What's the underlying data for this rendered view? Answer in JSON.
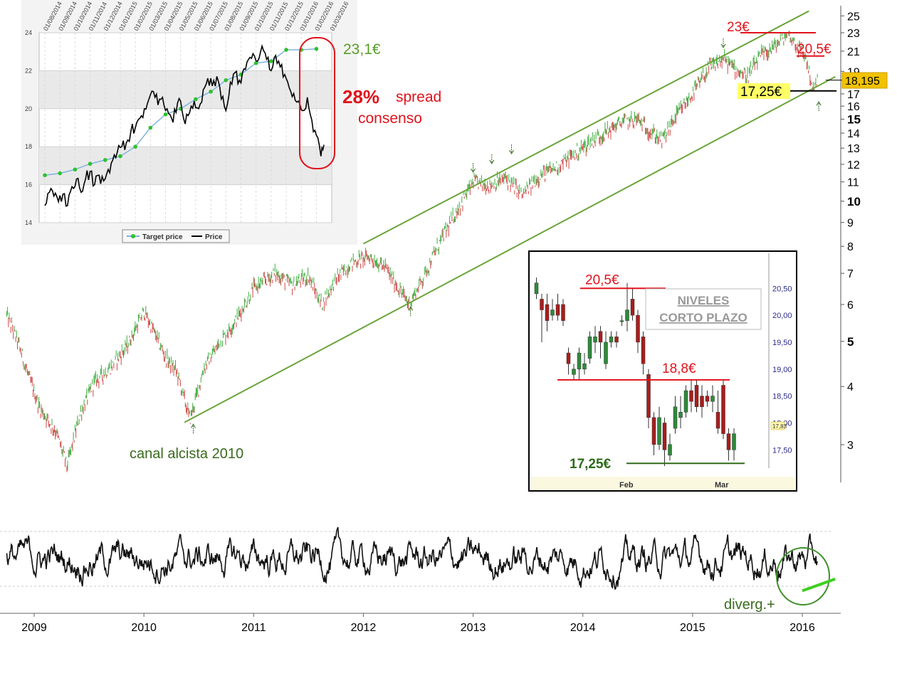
{
  "chart_data": [
    {
      "id": "main",
      "type": "line",
      "scale": "log",
      "x_axis": {
        "labels": [
          "2009",
          "2010",
          "2011",
          "2012",
          "2013",
          "2014",
          "2015",
          "2016"
        ]
      },
      "y_axis": {
        "ticks": [
          3,
          4,
          5,
          6,
          7,
          8,
          9,
          10,
          11,
          12,
          13,
          14,
          15,
          16,
          17,
          19,
          21,
          23,
          25
        ],
        "bold_ticks": [
          5,
          10,
          15
        ],
        "ylim": [
          2.6,
          26.5
        ]
      },
      "price_path": [
        {
          "year": 2008.75,
          "price": 5.7
        },
        {
          "year": 2008.85,
          "price": 5.0
        },
        {
          "year": 2008.95,
          "price": 4.2
        },
        {
          "year": 2009.05,
          "price": 3.6
        },
        {
          "year": 2009.2,
          "price": 3.2
        },
        {
          "year": 2009.3,
          "price": 2.7
        },
        {
          "year": 2009.42,
          "price": 3.5
        },
        {
          "year": 2009.55,
          "price": 4.1
        },
        {
          "year": 2009.7,
          "price": 4.4
        },
        {
          "year": 2009.85,
          "price": 4.9
        },
        {
          "year": 2010.0,
          "price": 5.8
        },
        {
          "year": 2010.1,
          "price": 5.2
        },
        {
          "year": 2010.2,
          "price": 4.6
        },
        {
          "year": 2010.3,
          "price": 4.3
        },
        {
          "year": 2010.42,
          "price": 3.4
        },
        {
          "year": 2010.55,
          "price": 4.4
        },
        {
          "year": 2010.7,
          "price": 5.0
        },
        {
          "year": 2010.85,
          "price": 5.6
        },
        {
          "year": 2011.0,
          "price": 6.5
        },
        {
          "year": 2011.2,
          "price": 7.0
        },
        {
          "year": 2011.35,
          "price": 6.6
        },
        {
          "year": 2011.5,
          "price": 6.9
        },
        {
          "year": 2011.62,
          "price": 6.0
        },
        {
          "year": 2011.75,
          "price": 6.8
        },
        {
          "year": 2011.9,
          "price": 7.4
        },
        {
          "year": 2012.05,
          "price": 7.6
        },
        {
          "year": 2012.2,
          "price": 7.2
        },
        {
          "year": 2012.32,
          "price": 6.5
        },
        {
          "year": 2012.42,
          "price": 6.0
        },
        {
          "year": 2012.55,
          "price": 6.9
        },
        {
          "year": 2012.7,
          "price": 8.2
        },
        {
          "year": 2012.85,
          "price": 9.5
        },
        {
          "year": 2013.0,
          "price": 11.0
        },
        {
          "year": 2013.15,
          "price": 10.8
        },
        {
          "year": 2013.3,
          "price": 11.2
        },
        {
          "year": 2013.45,
          "price": 10.3
        },
        {
          "year": 2013.6,
          "price": 11.3
        },
        {
          "year": 2013.75,
          "price": 11.8
        },
        {
          "year": 2013.9,
          "price": 12.5
        },
        {
          "year": 2014.05,
          "price": 13.3
        },
        {
          "year": 2014.2,
          "price": 14.0
        },
        {
          "year": 2014.35,
          "price": 14.8
        },
        {
          "year": 2014.5,
          "price": 15.0
        },
        {
          "year": 2014.6,
          "price": 14.2
        },
        {
          "year": 2014.72,
          "price": 13.5
        },
        {
          "year": 2014.85,
          "price": 15.2
        },
        {
          "year": 2015.0,
          "price": 17.0
        },
        {
          "year": 2015.15,
          "price": 19.3
        },
        {
          "year": 2015.28,
          "price": 20.2
        },
        {
          "year": 2015.4,
          "price": 19.2
        },
        {
          "year": 2015.5,
          "price": 18.5
        },
        {
          "year": 2015.62,
          "price": 20.5
        },
        {
          "year": 2015.75,
          "price": 21.5
        },
        {
          "year": 2015.87,
          "price": 22.9
        },
        {
          "year": 2015.95,
          "price": 21.6
        },
        {
          "year": 2016.03,
          "price": 20.4
        },
        {
          "year": 2016.1,
          "price": 17.3
        },
        {
          "year": 2016.14,
          "price": 18.2
        }
      ],
      "channel_lines": [
        {
          "name": "canal-upper",
          "from": [
            2012.0,
            8.1
          ],
          "to": [
            2016.06,
            25.6
          ]
        },
        {
          "name": "canal-lower",
          "from": [
            2010.37,
            3.35
          ],
          "to": [
            2016.3,
            18.5
          ]
        }
      ],
      "touch_arrows": [
        {
          "year": 2010.45,
          "price": 3.33,
          "dir": "up"
        },
        {
          "year": 2012.43,
          "price": 5.95,
          "dir": "up"
        },
        {
          "year": 2013.0,
          "price": 11.5,
          "dir": "down"
        },
        {
          "year": 2013.17,
          "price": 12.0,
          "dir": "down"
        },
        {
          "year": 2013.35,
          "price": 12.6,
          "dir": "down"
        },
        {
          "year": 2015.28,
          "price": 21.3,
          "dir": "down"
        },
        {
          "year": 2016.15,
          "price": 16.4,
          "dir": "up"
        }
      ],
      "annotations": {
        "channel": "canal alcista 2010",
        "high_label": "23€",
        "high_level": 23,
        "resistance_label": "20,5€",
        "resistance_level": 20.5,
        "support_label": "17,25€",
        "support_level": 17.25,
        "last_price": "18,195",
        "last_price_value": 18.195
      }
    },
    {
      "id": "target-vs-price",
      "type": "line",
      "ylim": [
        14,
        24
      ],
      "y_ticks": [
        14,
        16,
        18,
        20,
        22,
        24
      ],
      "x_labels": [
        "01/08/2014",
        "01/09/2014",
        "01/10/2014",
        "01/11/2014",
        "01/12/2014",
        "01/01/2015",
        "01/02/2015",
        "01/03/2015",
        "01/04/2015",
        "01/05/2015",
        "01/06/2015",
        "01/07/2015",
        "01/08/2015",
        "01/09/2015",
        "01/10/2015",
        "01/11/2015",
        "01/12/2015",
        "01/01/2016",
        "01/02/2016",
        "01/03/2016"
      ],
      "series": [
        {
          "name": "Target price",
          "points": [
            [
              0,
              16.5
            ],
            [
              1,
              16.6
            ],
            [
              2,
              16.8
            ],
            [
              3,
              17.1
            ],
            [
              4,
              17.3
            ],
            [
              5,
              17.5
            ],
            [
              6,
              18.0
            ],
            [
              7,
              19.0
            ],
            [
              8,
              19.7
            ],
            [
              9,
              20.0
            ],
            [
              10,
              20.5
            ],
            [
              11,
              20.9
            ],
            [
              12,
              21.5
            ],
            [
              13,
              21.8
            ],
            [
              14,
              22.4
            ],
            [
              15,
              22.5
            ],
            [
              16,
              23.1
            ],
            [
              17,
              23.1
            ],
            [
              18,
              23.15
            ]
          ]
        },
        {
          "name": "Price",
          "points": [
            [
              0.0,
              14.9
            ],
            [
              0.3,
              15.6
            ],
            [
              0.6,
              15.4
            ],
            [
              0.9,
              15.1
            ],
            [
              1.2,
              15.5
            ],
            [
              1.5,
              14.9
            ],
            [
              1.8,
              15.9
            ],
            [
              2.1,
              16.3
            ],
            [
              2.4,
              15.6
            ],
            [
              2.7,
              16.3
            ],
            [
              3.0,
              16.7
            ],
            [
              3.3,
              16.0
            ],
            [
              3.6,
              16.5
            ],
            [
              3.9,
              16.2
            ],
            [
              4.2,
              16.8
            ],
            [
              4.5,
              17.3
            ],
            [
              4.8,
              17.7
            ],
            [
              5.1,
              18.0
            ],
            [
              5.4,
              18.2
            ],
            [
              5.7,
              18.8
            ],
            [
              6.0,
              19.0
            ],
            [
              6.3,
              19.5
            ],
            [
              6.6,
              20.0
            ],
            [
              6.9,
              20.5
            ],
            [
              7.2,
              20.9
            ],
            [
              7.5,
              20.2
            ],
            [
              7.8,
              20.6
            ],
            [
              8.1,
              20.0
            ],
            [
              8.4,
              19.5
            ],
            [
              8.7,
              19.8
            ],
            [
              9.0,
              20.4
            ],
            [
              9.3,
              19.2
            ],
            [
              9.6,
              19.8
            ],
            [
              9.9,
              20.4
            ],
            [
              10.2,
              20.0
            ],
            [
              10.5,
              21.0
            ],
            [
              10.8,
              21.6
            ],
            [
              11.1,
              21.2
            ],
            [
              11.4,
              21.7
            ],
            [
              11.7,
              20.5
            ],
            [
              12.0,
              19.9
            ],
            [
              12.3,
              21.4
            ],
            [
              12.6,
              21.9
            ],
            [
              12.9,
              21.5
            ],
            [
              13.2,
              22.1
            ],
            [
              13.5,
              22.6
            ],
            [
              13.8,
              22.9
            ],
            [
              14.1,
              22.5
            ],
            [
              14.4,
              23.3
            ],
            [
              14.7,
              22.6
            ],
            [
              15.0,
              22.0
            ],
            [
              15.3,
              22.8
            ],
            [
              15.6,
              22.2
            ],
            [
              15.9,
              21.8
            ],
            [
              16.2,
              21.1
            ],
            [
              16.5,
              20.8
            ],
            [
              16.8,
              20.4
            ],
            [
              17.1,
              19.9
            ],
            [
              17.4,
              20.6
            ],
            [
              17.7,
              19.4
            ],
            [
              18.0,
              18.6
            ],
            [
              18.3,
              17.5
            ],
            [
              18.5,
              18.1
            ]
          ]
        }
      ],
      "legend": [
        "Target price",
        "Price"
      ],
      "annotations": {
        "target_label": "23,1€",
        "spread_value": "28%",
        "spread_text": "spread",
        "spread_text2": "consenso"
      }
    },
    {
      "id": "short-term-levels",
      "type": "candlestick",
      "title_line1": "NIVELES",
      "title_line2": "CORTO PLAZO",
      "y_ticks": [
        "20,50",
        "20,00",
        "19,50",
        "19,00",
        "18,50",
        "18,00",
        "17,50"
      ],
      "y_tick_values": [
        20.5,
        20.0,
        19.5,
        19.0,
        18.5,
        18.0,
        17.5
      ],
      "ylim": [
        17.2,
        20.9
      ],
      "x_labels": [
        "Feb",
        "Mar"
      ],
      "last_value_tag": "17,83",
      "levels": [
        {
          "label": "20,5€",
          "value": 20.5,
          "color": "#e0131c"
        },
        {
          "label": "18,8€",
          "value": 18.8,
          "color": "#e0131c"
        },
        {
          "label": "17,25€",
          "value": 17.25,
          "color": "#2e6b1a"
        }
      ],
      "candles": [
        {
          "o": 20.4,
          "c": 20.6,
          "h": 20.7,
          "l": 20.3
        },
        {
          "o": 20.3,
          "c": 20.1,
          "h": 20.4,
          "l": 19.5
        },
        {
          "o": 20.2,
          "c": 19.9,
          "h": 20.4,
          "l": 19.7
        },
        {
          "o": 20.0,
          "c": 20.1,
          "h": 20.3,
          "l": 19.9
        },
        {
          "o": 20.2,
          "c": 20.0,
          "h": 20.4,
          "l": 19.9
        },
        {
          "o": 20.2,
          "c": 19.9,
          "h": 20.3,
          "l": 19.8
        },
        {
          "o": 19.3,
          "c": 19.1,
          "h": 19.4,
          "l": 18.9
        },
        {
          "o": 18.9,
          "c": 19.0,
          "h": 19.1,
          "l": 18.8
        },
        {
          "o": 19.0,
          "c": 19.3,
          "h": 19.4,
          "l": 18.8
        },
        {
          "o": 19.0,
          "c": 19.1,
          "h": 19.3,
          "l": 18.9
        },
        {
          "o": 19.2,
          "c": 19.6,
          "h": 19.7,
          "l": 19.1
        },
        {
          "o": 19.5,
          "c": 19.6,
          "h": 19.8,
          "l": 19.3
        },
        {
          "o": 19.7,
          "c": 19.5,
          "h": 19.8,
          "l": 19.2
        },
        {
          "o": 19.1,
          "c": 19.5,
          "h": 19.7,
          "l": 19.0
        },
        {
          "o": 19.5,
          "c": 19.6,
          "h": 19.7,
          "l": 19.4
        },
        {
          "o": 19.6,
          "c": 19.5,
          "h": 19.7,
          "l": 19.4
        },
        {
          "o": 19.9,
          "c": 19.9,
          "h": 20.0,
          "l": 19.8
        },
        {
          "o": 19.9,
          "c": 20.1,
          "h": 20.6,
          "l": 19.7
        },
        {
          "o": 20.3,
          "c": 20.0,
          "h": 20.5,
          "l": 19.9
        },
        {
          "o": 20.0,
          "c": 19.5,
          "h": 20.1,
          "l": 19.3
        },
        {
          "o": 19.6,
          "c": 19.1,
          "h": 19.7,
          "l": 18.9
        },
        {
          "o": 18.9,
          "c": 18.1,
          "h": 19.0,
          "l": 17.9
        },
        {
          "o": 18.1,
          "c": 17.6,
          "h": 18.2,
          "l": 17.4
        },
        {
          "o": 17.6,
          "c": 18.1,
          "h": 18.3,
          "l": 17.5
        },
        {
          "o": 18.0,
          "c": 17.5,
          "h": 18.1,
          "l": 17.2
        },
        {
          "o": 17.4,
          "c": 17.6,
          "h": 17.8,
          "l": 17.3
        },
        {
          "o": 17.9,
          "c": 18.3,
          "h": 18.5,
          "l": 17.8
        },
        {
          "o": 18.1,
          "c": 18.2,
          "h": 18.5,
          "l": 17.9
        },
        {
          "o": 18.2,
          "c": 18.6,
          "h": 18.7,
          "l": 18.1
        },
        {
          "o": 18.6,
          "c": 18.4,
          "h": 18.8,
          "l": 18.2
        },
        {
          "o": 18.7,
          "c": 18.3,
          "h": 18.8,
          "l": 18.2
        },
        {
          "o": 18.5,
          "c": 18.3,
          "h": 18.7,
          "l": 18.1
        },
        {
          "o": 18.5,
          "c": 18.4,
          "h": 18.6,
          "l": 18.3
        },
        {
          "o": 18.4,
          "c": 18.5,
          "h": 18.7,
          "l": 18.2
        },
        {
          "o": 18.2,
          "c": 17.9,
          "h": 18.6,
          "l": 17.8
        },
        {
          "o": 18.7,
          "c": 17.8,
          "h": 18.8,
          "l": 17.7
        },
        {
          "o": 17.8,
          "c": 17.5,
          "h": 17.9,
          "l": 17.3
        },
        {
          "o": 17.5,
          "c": 17.8,
          "h": 17.9,
          "l": 17.3
        }
      ]
    },
    {
      "id": "oscillator",
      "type": "line",
      "ylim": [
        0,
        100
      ],
      "bands": [
        20,
        80
      ],
      "x_labels": [
        "2009",
        "2010",
        "2011",
        "2012",
        "2013",
        "2014",
        "2015",
        "2016"
      ],
      "annotations": {
        "divergence": "diverg.+",
        "divergence_line": [
          [
            2016.0,
            15
          ],
          [
            2016.3,
            28
          ]
        ]
      }
    }
  ]
}
